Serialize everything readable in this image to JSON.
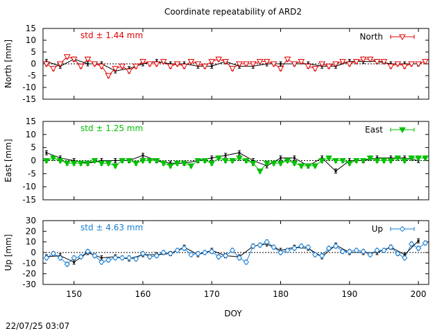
{
  "title": "Coordinate repeatability of ARD2",
  "timestamp": "22/07/25 03:07",
  "x_axis": {
    "label": "DOY",
    "ticks": [
      150,
      160,
      170,
      180,
      190,
      200
    ],
    "range": [
      145.5,
      201.5
    ]
  },
  "chart_data": [
    {
      "type": "line",
      "panel": "north",
      "ylabel": "North [mm]",
      "ylim": [
        -15,
        15
      ],
      "yticks": [
        -15,
        -10,
        -5,
        0,
        5,
        10,
        15
      ],
      "annotation": "std ± 1.44 mm",
      "color": "#e00000",
      "marker": "open-triangle-down",
      "series": [
        {
          "name": "North",
          "x": [
            146,
            147,
            148,
            149,
            150,
            151,
            152,
            153,
            154,
            155,
            156,
            157,
            158,
            159,
            160,
            161,
            162,
            163,
            164,
            165,
            166,
            167,
            168,
            169,
            170,
            171,
            172,
            173,
            174,
            175,
            176,
            177,
            178,
            179,
            180,
            181,
            182,
            183,
            184,
            185,
            186,
            187,
            188,
            189,
            190,
            191,
            192,
            193,
            194,
            195,
            196,
            197,
            198,
            199,
            200,
            201
          ],
          "values": [
            0,
            -2,
            0,
            3,
            2,
            -1,
            2,
            0,
            -1,
            -5,
            -2,
            -1,
            -3,
            -1,
            1,
            0,
            0,
            1,
            -1,
            0,
            -1,
            1,
            0,
            -1,
            1,
            2,
            1,
            -2,
            0,
            0,
            0,
            1,
            1,
            0,
            -2,
            2,
            0,
            1,
            -1,
            -2,
            0,
            -1,
            0,
            1,
            0,
            1,
            2,
            2,
            1,
            1,
            -1,
            0,
            -1,
            0,
            0,
            1
          ]
        },
        {
          "name": "",
          "x": [
            146,
            148,
            150,
            152,
            154,
            156,
            158,
            160,
            162,
            164,
            166,
            168,
            170,
            172,
            174,
            176,
            178,
            180,
            182,
            184,
            186,
            188,
            190,
            192,
            194,
            196,
            198,
            200
          ],
          "values": [
            1,
            -1,
            2,
            0,
            0,
            -3,
            -2,
            0,
            1,
            0,
            0,
            -1,
            -1,
            1,
            -1,
            -1,
            0,
            0,
            0,
            0,
            -1,
            -1,
            1,
            1,
            1,
            0,
            0,
            0
          ]
        }
      ]
    },
    {
      "type": "line",
      "panel": "east",
      "ylabel": "East [mm]",
      "ylim": [
        -15,
        15
      ],
      "yticks": [
        -15,
        -10,
        -5,
        0,
        5,
        10,
        15
      ],
      "annotation": "std ± 1.25 mm",
      "color": "#00c000",
      "marker": "filled-triangle-down",
      "series": [
        {
          "name": "East",
          "x": [
            146,
            147,
            148,
            149,
            150,
            151,
            152,
            153,
            154,
            155,
            156,
            157,
            158,
            159,
            160,
            161,
            162,
            163,
            164,
            165,
            166,
            167,
            168,
            169,
            170,
            171,
            172,
            173,
            174,
            175,
            176,
            177,
            178,
            179,
            180,
            181,
            182,
            183,
            184,
            185,
            186,
            187,
            188,
            189,
            190,
            191,
            192,
            193,
            194,
            195,
            196,
            197,
            198,
            199,
            200,
            201
          ],
          "values": [
            0,
            1,
            0,
            -1,
            -1,
            -1,
            -1,
            0,
            -1,
            -1,
            -2,
            0,
            0,
            -1,
            0,
            0,
            0,
            -1,
            -2,
            -1,
            -1,
            -2,
            0,
            0,
            -1,
            1,
            0,
            0,
            1,
            0,
            -1,
            -4,
            -1,
            -1,
            -1,
            0,
            -1,
            -2,
            -2,
            -2,
            0,
            1,
            0,
            0,
            -1,
            0,
            0,
            1,
            0,
            0,
            0,
            1,
            0,
            1,
            1,
            1
          ]
        },
        {
          "name": "",
          "x": [
            146,
            148,
            150,
            152,
            154,
            156,
            158,
            160,
            162,
            164,
            166,
            168,
            170,
            172,
            174,
            176,
            178,
            180,
            182,
            184,
            186,
            188,
            190,
            192,
            194,
            196,
            198,
            200
          ],
          "values": [
            3,
            1,
            0,
            -1,
            0,
            0,
            0,
            2,
            0,
            -1,
            -1,
            0,
            1,
            2,
            3,
            0,
            -2,
            1,
            1,
            -2,
            1,
            -4,
            0,
            0,
            1,
            1,
            1,
            0
          ]
        }
      ]
    },
    {
      "type": "line",
      "panel": "up",
      "ylabel": "Up [mm]",
      "ylim": [
        -30,
        30
      ],
      "yticks": [
        -30,
        -20,
        -10,
        0,
        10,
        20,
        30
      ],
      "annotation": "std ± 4.63 mm",
      "color": "#1a7fd4",
      "marker": "open-diamond",
      "series": [
        {
          "name": "Up",
          "x": [
            146,
            147,
            148,
            149,
            150,
            151,
            152,
            153,
            154,
            155,
            156,
            157,
            158,
            159,
            160,
            161,
            162,
            163,
            164,
            165,
            166,
            167,
            168,
            169,
            170,
            171,
            172,
            173,
            174,
            175,
            176,
            177,
            178,
            179,
            180,
            181,
            182,
            183,
            184,
            185,
            186,
            187,
            188,
            189,
            190,
            191,
            192,
            193,
            194,
            195,
            196,
            197,
            198,
            199,
            200,
            201
          ],
          "values": [
            -5,
            -1,
            -5,
            -11,
            -5,
            -4,
            1,
            -3,
            -9,
            -7,
            -5,
            -5,
            -5,
            -6,
            -1,
            -4,
            -3,
            0,
            -1,
            2,
            4,
            -2,
            -1,
            0,
            1,
            -4,
            -3,
            2,
            -5,
            -9,
            6,
            7,
            10,
            5,
            0,
            2,
            4,
            6,
            5,
            -2,
            -3,
            4,
            6,
            1,
            1,
            2,
            1,
            -2,
            2,
            2,
            5,
            -1,
            -5,
            8,
            4,
            9
          ]
        },
        {
          "name": "",
          "x": [
            146,
            148,
            150,
            152,
            154,
            156,
            158,
            160,
            162,
            164,
            166,
            168,
            170,
            172,
            174,
            176,
            178,
            180,
            182,
            184,
            186,
            188,
            190,
            192,
            194,
            196,
            198,
            200
          ],
          "values": [
            -4,
            -3,
            -9,
            0,
            -5,
            -4,
            -6,
            -2,
            -2,
            -1,
            5,
            -2,
            2,
            -3,
            -4,
            6,
            8,
            2,
            5,
            4,
            -4,
            7,
            0,
            0,
            0,
            5,
            -2,
            11
          ]
        }
      ]
    }
  ]
}
